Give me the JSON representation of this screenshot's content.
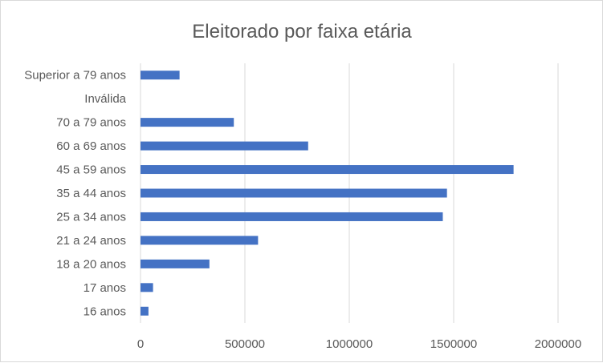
{
  "chart_data": {
    "type": "bar",
    "orientation": "horizontal",
    "title": "Eleitorado por faixa etária",
    "xlabel": "",
    "ylabel": "",
    "categories": [
      "16 anos",
      "17 anos",
      "18 a 20 anos",
      "21 a 24 anos",
      "25 a 34 anos",
      "35 a 44 anos",
      "45 a 59 anos",
      "60 a 69 anos",
      "70 a 79 anos",
      "Inválida",
      "Superior a 79 anos"
    ],
    "values": [
      38000,
      60000,
      330000,
      563000,
      1448000,
      1468000,
      1787000,
      803000,
      447000,
      0,
      187000
    ],
    "xlim": [
      0,
      2000000
    ],
    "xticks": [
      0,
      500000,
      1000000,
      1500000,
      2000000
    ],
    "xtick_labels": [
      "0",
      "500000",
      "1000000",
      "1500000",
      "2000000"
    ],
    "grid": true,
    "legend": "none",
    "colors": {
      "bar": "#4472c4",
      "grid": "#d9d9d9",
      "text": "#595959",
      "border": "#d9d9d9"
    }
  }
}
